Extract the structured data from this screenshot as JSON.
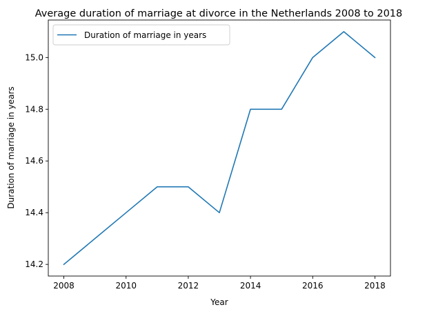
{
  "chart_data": {
    "type": "line",
    "title": "Average duration of marriage at divorce in the Netherlands 2008 to 2018",
    "xlabel": "Year",
    "ylabel": "Duration of marriage in years",
    "x": [
      2008,
      2009,
      2010,
      2011,
      2012,
      2013,
      2014,
      2015,
      2016,
      2017,
      2018
    ],
    "series": [
      {
        "name": "Duration of marriage in years",
        "values": [
          14.2,
          14.3,
          14.4,
          14.5,
          14.5,
          14.4,
          14.8,
          14.8,
          15.0,
          15.1,
          15.0
        ],
        "color": "#1f77b4"
      }
    ],
    "xticks": [
      2008,
      2010,
      2012,
      2014,
      2016,
      2018
    ],
    "xtick_labels": [
      "2008",
      "2010",
      "2012",
      "2014",
      "2016",
      "2018"
    ],
    "yticks": [
      14.2,
      14.4,
      14.6,
      14.8,
      15.0
    ],
    "ytick_labels": [
      "14.2",
      "14.4",
      "14.6",
      "14.8",
      "15.0"
    ],
    "xlim": [
      2007.5,
      2018.5
    ],
    "ylim": [
      14.155,
      15.145
    ],
    "grid": false,
    "legend_position": "top-left"
  }
}
